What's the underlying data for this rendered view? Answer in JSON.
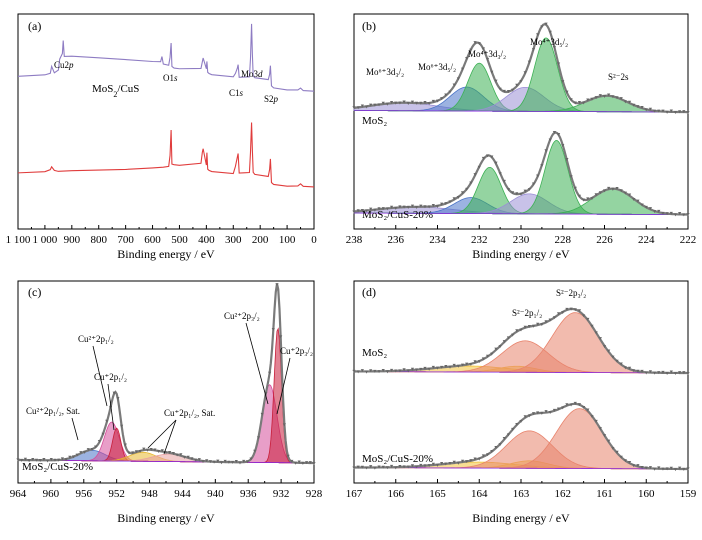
{
  "chart_data": [
    {
      "id": "a",
      "type": "line",
      "panel_label": "(a)",
      "xlabel": "Binding energy / eV",
      "ylabel": "",
      "xlim": [
        1100,
        0
      ],
      "x_reversed": true,
      "xticks": [
        1100,
        1000,
        900,
        800,
        700,
        600,
        500,
        400,
        300,
        200,
        100,
        0
      ],
      "xtick_labels": [
        "1 100",
        "1 000",
        "900",
        "800",
        "700",
        "600",
        "500",
        "400",
        "300",
        "200",
        "100",
        "0"
      ],
      "series": [
        {
          "name": "MoS2/CuS",
          "color": "#8E7CC3",
          "offset": 1,
          "x": [
            1100,
            1000,
            980,
            975,
            965,
            950,
            945,
            935,
            932,
            928,
            900,
            800,
            700,
            600,
            570,
            565,
            560,
            540,
            535,
            531,
            528,
            520,
            500,
            420,
            415,
            412,
            400,
            398,
            395,
            390,
            380,
            300,
            292,
            285,
            282,
            278,
            260,
            240,
            236,
            232,
            229,
            226,
            220,
            170,
            165,
            162,
            158,
            150,
            100,
            60,
            50,
            40,
            0
          ],
          "y": [
            0.4,
            0.42,
            0.44,
            0.52,
            0.45,
            0.48,
            0.6,
            0.66,
            0.8,
            0.62,
            0.62,
            0.6,
            0.58,
            0.56,
            0.56,
            0.62,
            0.54,
            0.53,
            0.62,
            0.78,
            0.52,
            0.5,
            0.49,
            0.49,
            0.56,
            0.6,
            0.48,
            0.56,
            0.44,
            0.43,
            0.42,
            0.4,
            0.44,
            0.5,
            0.54,
            0.4,
            0.4,
            0.4,
            0.6,
            0.98,
            0.64,
            0.4,
            0.38,
            0.36,
            0.42,
            0.52,
            0.3,
            0.28,
            0.26,
            0.26,
            0.28,
            0.25,
            0.24
          ]
        },
        {
          "name": "MoS2",
          "color": "#E03C3C",
          "offset": 0,
          "x": [
            1100,
            1000,
            980,
            975,
            965,
            950,
            900,
            800,
            700,
            600,
            560,
            540,
            535,
            531,
            528,
            520,
            500,
            420,
            415,
            412,
            400,
            398,
            395,
            390,
            380,
            300,
            292,
            285,
            282,
            278,
            260,
            240,
            236,
            232,
            229,
            226,
            220,
            170,
            165,
            162,
            158,
            150,
            100,
            60,
            50,
            40,
            0
          ],
          "y": [
            0.4,
            0.41,
            0.43,
            0.46,
            0.42,
            0.41,
            0.42,
            0.43,
            0.44,
            0.46,
            0.47,
            0.48,
            0.6,
            0.88,
            0.5,
            0.49,
            0.48,
            0.5,
            0.62,
            0.66,
            0.48,
            0.62,
            0.44,
            0.43,
            0.42,
            0.4,
            0.48,
            0.58,
            0.62,
            0.4,
            0.4,
            0.4,
            0.62,
            0.95,
            0.64,
            0.4,
            0.38,
            0.36,
            0.44,
            0.56,
            0.3,
            0.28,
            0.26,
            0.26,
            0.28,
            0.25,
            0.24
          ]
        }
      ],
      "annotations": [
        {
          "text": "Cu2p",
          "x": 935
        },
        {
          "text": "MoS2/CuS",
          "x": 740
        },
        {
          "text": "O1s",
          "x": 531
        },
        {
          "text": "C1s",
          "x": 284
        },
        {
          "text": "Mo3d",
          "x": 230
        },
        {
          "text": "S2p",
          "x": 162
        }
      ]
    },
    {
      "id": "b",
      "type": "area",
      "panel_label": "(b)",
      "xlabel": "Binding energy / eV",
      "ylabel": "",
      "xlim": [
        238,
        222
      ],
      "x_reversed": true,
      "xticks": [
        238,
        236,
        234,
        232,
        230,
        228,
        226,
        224,
        222
      ],
      "xtick_labels": [
        "238",
        "236",
        "234",
        "232",
        "230",
        "228",
        "226",
        "224",
        "222"
      ],
      "stacks": [
        {
          "name": "MoS2",
          "baseline": 0.08,
          "peaks": [
            {
              "label": "Mo6+3d3/2",
              "center": 235.6,
              "width": 1.6,
              "height": 0.1,
              "color": "#9B8FD6"
            },
            {
              "label": "Mo6+3d5/2",
              "center": 232.6,
              "width": 0.8,
              "height": 0.3,
              "color": "#4A74C8"
            },
            {
              "label": "Mo4+3d3/2",
              "center": 232.0,
              "width": 0.55,
              "height": 0.6,
              "color": "#3CB054"
            },
            {
              "label": "",
              "center": 229.8,
              "width": 0.9,
              "height": 0.3,
              "color": "#9B8FD6"
            },
            {
              "label": "Mo4+3d5/2",
              "center": 228.8,
              "width": 0.55,
              "height": 0.92,
              "color": "#3CB054"
            },
            {
              "label": "S2-2s",
              "center": 225.9,
              "width": 1.0,
              "height": 0.2,
              "color": "#3CB054"
            }
          ]
        },
        {
          "name": "MoS2/CuS-20%",
          "baseline": 0.08,
          "peaks": [
            {
              "label": "",
              "center": 235.0,
              "width": 1.8,
              "height": 0.08,
              "color": "#9B8FD6"
            },
            {
              "label": "",
              "center": 232.4,
              "width": 0.8,
              "height": 0.2,
              "color": "#4A74C8"
            },
            {
              "label": "",
              "center": 231.5,
              "width": 0.55,
              "height": 0.58,
              "color": "#3CB054"
            },
            {
              "label": "",
              "center": 229.6,
              "width": 0.9,
              "height": 0.25,
              "color": "#9B8FD6"
            },
            {
              "label": "",
              "center": 228.3,
              "width": 0.55,
              "height": 0.92,
              "color": "#3CB054"
            },
            {
              "label": "",
              "center": 225.6,
              "width": 1.0,
              "height": 0.32,
              "color": "#3CB054"
            }
          ]
        }
      ],
      "annotations": [
        {
          "text": "Mo⁶⁺3d₃/₂",
          "x": 235.6
        },
        {
          "text": "Mo⁶⁺3d₅/₂",
          "x": 233.2
        },
        {
          "text": "Mo⁴⁺3d₃/₂",
          "x": 231.6
        },
        {
          "text": "Mo⁴⁺3d₅/₂",
          "x": 228.8
        },
        {
          "text": "S²⁻2s",
          "x": 225.9
        }
      ],
      "sample_labels": [
        "MoS₂",
        "MoS₂/CuS-20%"
      ]
    },
    {
      "id": "c",
      "type": "area",
      "panel_label": "(c)",
      "xlabel": "Binding energy / eV",
      "ylabel": "",
      "xlim": [
        964,
        928
      ],
      "x_reversed": true,
      "xticks": [
        964,
        960,
        956,
        952,
        948,
        944,
        940,
        936,
        932,
        928
      ],
      "xtick_labels": [
        "964",
        "960",
        "956",
        "952",
        "948",
        "944",
        "940",
        "936",
        "932",
        "928"
      ],
      "stacks": [
        {
          "name": "MoS2/CuS-20%",
          "baseline": 0.08,
          "peaks": [
            {
              "label": "Cu2+2p1/2, Sat.",
              "center": 955.0,
              "width": 1.6,
              "height": 0.07,
              "color": "#4A74C8"
            },
            {
              "label": "Cu2+2p1/2",
              "center": 952.6,
              "width": 0.9,
              "height": 0.26,
              "color": "#D64E9A"
            },
            {
              "label": "Cu+2p1/2",
              "center": 952.0,
              "width": 0.5,
              "height": 0.22,
              "color": "#C81E3A"
            },
            {
              "label": "Cu+2p1/2, Sat.",
              "center": 948.8,
              "width": 1.6,
              "height": 0.06,
              "color": "#E8B830"
            },
            {
              "label": "",
              "center": 945.6,
              "width": 2.0,
              "height": 0.05,
              "color": "#E8A0A0"
            },
            {
              "label": "Cu2+2p3/2",
              "center": 933.4,
              "width": 0.9,
              "height": 0.52,
              "color": "#D64E9A"
            },
            {
              "label": "Cu+2p3/2",
              "center": 932.4,
              "width": 0.45,
              "height": 0.9,
              "color": "#C81E3A"
            }
          ]
        }
      ],
      "annotations": [
        {
          "text": "Cu²⁺2p₁/₂",
          "x": 953.5
        },
        {
          "text": "Cu⁺2p₁/₂",
          "x": 950.5
        },
        {
          "text": "Cu²⁺2p₁/₂, Sat.",
          "x": 958.0
        },
        {
          "text": "Cu⁺2p₁/₂, Sat.",
          "x": 945.0
        },
        {
          "text": "Cu²⁺2p₃/₂",
          "x": 934.5
        },
        {
          "text": "Cu⁺2p₃/₂",
          "x": 931.0
        }
      ],
      "sample_labels": [
        "MoS₂/CuS-20%"
      ]
    },
    {
      "id": "d",
      "type": "area",
      "panel_label": "(d)",
      "xlabel": "Binding energy / eV",
      "ylabel": "",
      "xlim": [
        167,
        159
      ],
      "x_reversed": true,
      "xticks": [
        167,
        166,
        165,
        164,
        163,
        162,
        161,
        160,
        159
      ],
      "xtick_labels": [
        "167",
        "166",
        "165",
        "164",
        "163",
        "162",
        "161",
        "160",
        "159"
      ],
      "stacks": [
        {
          "name": "MoS2",
          "baseline": 0.08,
          "peaks": [
            {
              "label": "",
              "center": 164.2,
              "width": 0.9,
              "height": 0.08,
              "color": "#F2C23A"
            },
            {
              "label": "",
              "center": 163.1,
              "width": 0.45,
              "height": 0.08,
              "color": "#F2C23A"
            },
            {
              "label": "S2-2p1/2",
              "center": 162.9,
              "width": 0.55,
              "height": 0.42,
              "color": "#E8836C"
            },
            {
              "label": "S2-2p3/2",
              "center": 161.7,
              "width": 0.55,
              "height": 0.8,
              "color": "#E8836C"
            }
          ]
        },
        {
          "name": "MoS2/CuS-20%",
          "baseline": 0.08,
          "peaks": [
            {
              "label": "",
              "center": 164.0,
              "width": 0.9,
              "height": 0.08,
              "color": "#F2C23A"
            },
            {
              "label": "",
              "center": 162.8,
              "width": 0.45,
              "height": 0.1,
              "color": "#F2C23A"
            },
            {
              "label": "",
              "center": 162.8,
              "width": 0.55,
              "height": 0.5,
              "color": "#E8836C"
            },
            {
              "label": "",
              "center": 161.6,
              "width": 0.55,
              "height": 0.8,
              "color": "#E8836C"
            }
          ]
        }
      ],
      "annotations": [
        {
          "text": "S²⁻2p₁/₂",
          "x": 162.9
        },
        {
          "text": "S²⁻2p₃/₂",
          "x": 161.7
        }
      ],
      "sample_labels": [
        "MoS₂",
        "MoS₂/CuS-20%"
      ]
    }
  ]
}
